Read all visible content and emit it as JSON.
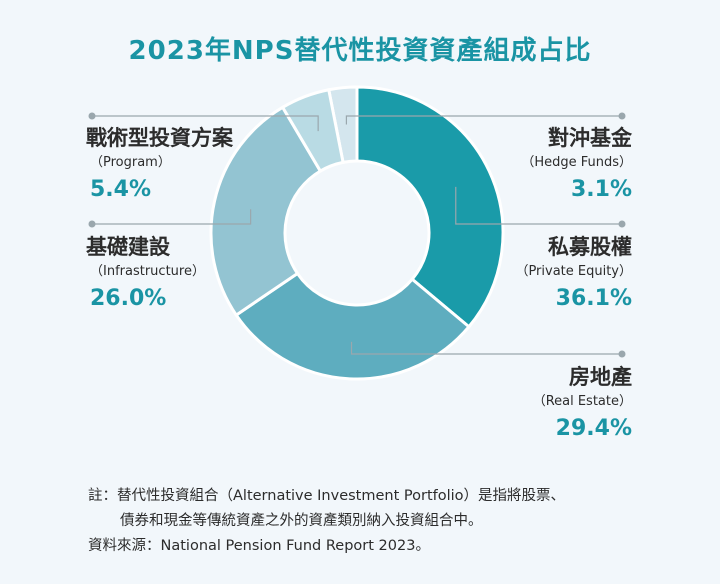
{
  "chart_data": {
    "type": "pie",
    "title": "2023年NPS替代性投資資產組成占比",
    "categories": [
      "對沖基金",
      "私募股權",
      "房地產",
      "基礎建設",
      "戰術型投資方案"
    ],
    "categories_en": [
      "Hedge Funds",
      "Private Equity",
      "Real Estate",
      "Infrastructure",
      "Program"
    ],
    "values": [
      3.1,
      36.1,
      29.4,
      26.0,
      5.4
    ],
    "labels": [
      "3.1%",
      "36.1%",
      "29.4%",
      "26.0%",
      "5.4%"
    ],
    "colors": [
      "#d4e6ee",
      "#1a9ba9",
      "#5eadbf",
      "#93c4d2",
      "#b9dbe4"
    ],
    "donut": true,
    "legend": "outside-labels"
  },
  "labels": {
    "program": {
      "name": "戰術型投資方案",
      "en": "（Program）",
      "pct": "5.4%"
    },
    "hedge": {
      "name": "對沖基金",
      "en": "（Hedge Funds）",
      "pct": "3.1%"
    },
    "infra": {
      "name": "基礎建設",
      "en": "（Infrastructure）",
      "pct": "26.0%"
    },
    "private": {
      "name": "私募股權",
      "en": "（Private Equity）",
      "pct": "36.1%"
    },
    "realestate": {
      "name": "房地產",
      "en": "（Real Estate）",
      "pct": "29.4%"
    }
  },
  "notes": {
    "line1": "註：替代性投資組合（Alternative Investment Portfolio）是指將股票、",
    "line2": "債券和現金等傳統資產之外的資產類別納入投資組合中。",
    "source": "資料來源：National Pension Fund Report 2023。"
  },
  "colors": {
    "accent": "#1a94a4",
    "leader": "#9aa7ad",
    "background": "#f2f7fb"
  }
}
